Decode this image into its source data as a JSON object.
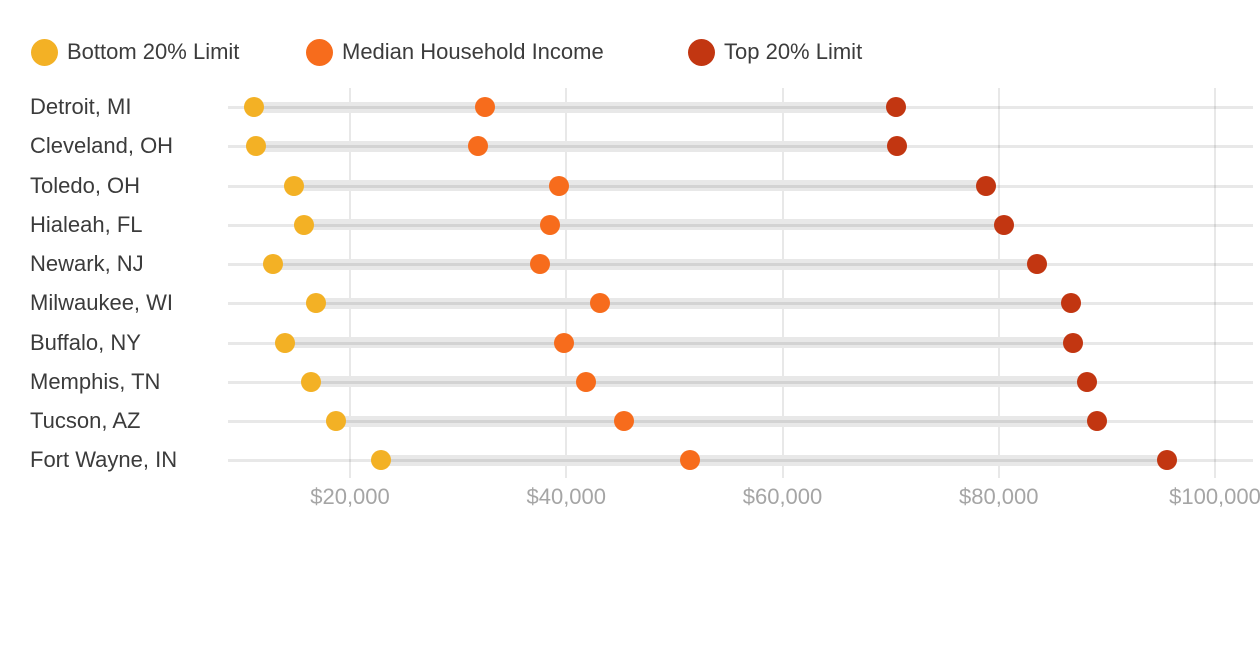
{
  "legend": {
    "position": "top-left",
    "items": [
      {
        "label": "Bottom 20% Limit"
      },
      {
        "label": "Median Household Income"
      },
      {
        "label": "Top 20% Limit"
      }
    ]
  },
  "chart_data": {
    "type": "dumbbell",
    "orientation": "horizontal",
    "title": "",
    "xlabel": "",
    "ylabel": "",
    "grid": true,
    "xlim": [
      8700,
      103500
    ],
    "categories": [
      "Detroit, MI",
      "Cleveland, OH",
      "Toledo, OH",
      "Hialeah, FL",
      "Newark, NJ",
      "Milwaukee, WI",
      "Buffalo, NY",
      "Memphis, TN",
      "Tucson, AZ",
      "Fort Wayne, IN"
    ],
    "series": [
      {
        "name": "Bottom 20% Limit",
        "key": "bottom-20-limit",
        "color": "#F3B125",
        "values": [
          11100,
          11300,
          14800,
          15700,
          12900,
          16900,
          14000,
          16400,
          18700,
          22900
        ]
      },
      {
        "name": "Median Household Income",
        "key": "median-household-income",
        "color": "#F76C1C",
        "values": [
          32500,
          31800,
          39300,
          38500,
          37600,
          43100,
          39800,
          41800,
          45300,
          51400
        ]
      },
      {
        "name": "Top 20% Limit",
        "key": "top-20-limit",
        "color": "#C23611",
        "values": [
          70500,
          70600,
          78800,
          80500,
          83500,
          86700,
          86900,
          88200,
          89100,
          95600
        ]
      }
    ],
    "x_axis": {
      "ticks": [
        20000,
        40000,
        60000,
        80000,
        100000
      ],
      "tick_labels": [
        "$20,000",
        "$40,000",
        "$60,000",
        "$80,000",
        "$100,000"
      ]
    },
    "colors": {
      "range_bar": "#e8e8e8",
      "gridline": "#e8e8e8",
      "category_label": "#3b3b3b",
      "tick_label": "#a5a5a5",
      "legend_text": "#3c3c3c"
    }
  }
}
